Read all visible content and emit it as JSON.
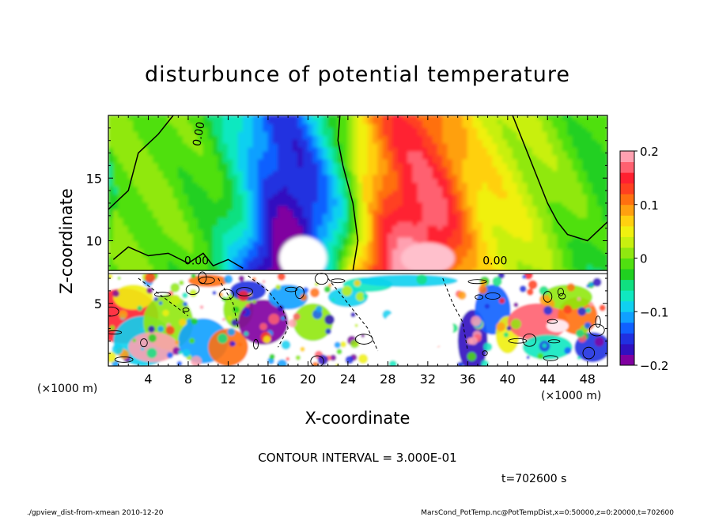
{
  "chart_data": {
    "type": "heatmap",
    "title": "disturbunce of potential temperature",
    "xlabel": "X-coordinate",
    "ylabel": "Z-coordinate",
    "x_unit": "(×1000 m)",
    "y_unit": "(×1000 m)",
    "xlim": [
      0,
      50
    ],
    "ylim": [
      0,
      20
    ],
    "x_ticks": [
      4,
      8,
      12,
      16,
      20,
      24,
      28,
      32,
      36,
      40,
      44,
      48
    ],
    "y_ticks": [
      5,
      10,
      15
    ],
    "colorbar": {
      "min": -0.2,
      "max": 0.2,
      "ticks": [
        "0.2",
        "0.1",
        "0",
        "−0.1",
        "−0.2"
      ],
      "tick_values": [
        0.2,
        0.1,
        0,
        -0.1,
        -0.2
      ],
      "colors": [
        "#8000a0",
        "#3010c0",
        "#2030e0",
        "#1060ff",
        "#10a0ff",
        "#10d0f0",
        "#10e8c0",
        "#10e080",
        "#20d020",
        "#50e010",
        "#90e810",
        "#c8f010",
        "#f0f010",
        "#ffd010",
        "#ffa010",
        "#ff7010",
        "#ff4020",
        "#ff2030",
        "#ff6070",
        "#ffa0b0"
      ]
    },
    "contour_label": "0.00",
    "contour_interval_text": "CONTOUR INTERVAL = 3.000E-01",
    "time_text": "t=702600 s",
    "upper_field": {
      "description_bands_x": [
        0,
        5,
        10,
        13,
        15,
        17,
        19,
        21,
        23,
        25,
        27,
        29,
        31,
        33,
        35,
        37,
        40,
        44,
        48,
        50
      ],
      "values": [
        0.0,
        0.0,
        -0.02,
        -0.08,
        -0.14,
        -0.18,
        -0.17,
        -0.12,
        -0.05,
        0.05,
        0.12,
        0.16,
        0.17,
        0.15,
        0.1,
        0.06,
        0.04,
        0.01,
        -0.02,
        -0.03
      ]
    },
    "layer_boundary_z": 7.5
  },
  "footer": {
    "left": "./gpview_dist-from-xmean  2010-12-20",
    "right": "MarsCond_PotTemp.nc@PotTempDist,x=0:50000,z=0:20000,t=702600"
  }
}
